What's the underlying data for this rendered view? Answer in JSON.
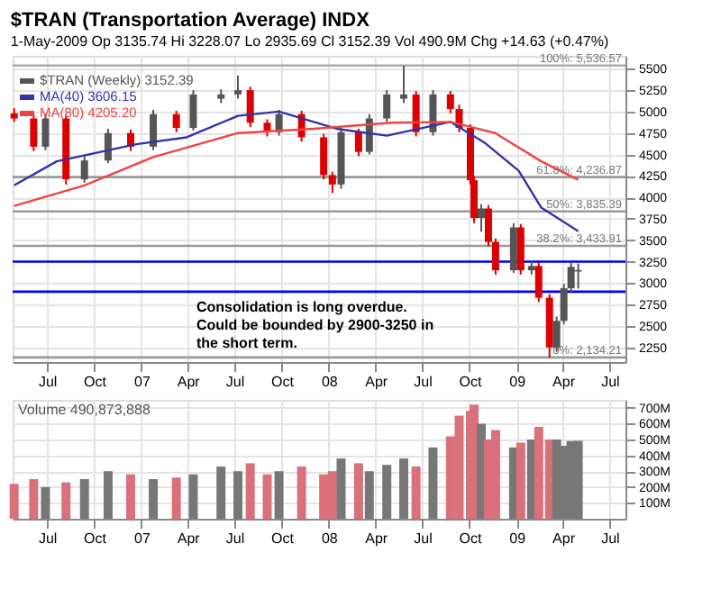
{
  "chart_data": [
    {
      "type": "candlestick",
      "title": "$TRAN (Transportation Average) INDX",
      "subtitle": "1-May-2009   Op 3135.74  Hi 3228.07  Lo 2935.69  Cl 3152.39  Vol 490.9M  Chg +14.63 (+0.47%)",
      "xlim": [
        "2006-04-25",
        "2009-08-01"
      ],
      "xticks": [
        {
          "value": "2006-07-01",
          "label": "Jul"
        },
        {
          "value": "2006-10-01",
          "label": "Oct"
        },
        {
          "value": "2007-01-01",
          "label": "07"
        },
        {
          "value": "2007-04-01",
          "label": "Apr"
        },
        {
          "value": "2007-07-01",
          "label": "Jul"
        },
        {
          "value": "2007-10-01",
          "label": "Oct"
        },
        {
          "value": "2008-01-01",
          "label": "08"
        },
        {
          "value": "2008-04-01",
          "label": "Apr"
        },
        {
          "value": "2008-07-01",
          "label": "Jul"
        },
        {
          "value": "2008-10-01",
          "label": "Oct"
        },
        {
          "value": "2009-01-01",
          "label": "09"
        },
        {
          "value": "2009-04-01",
          "label": "Apr"
        },
        {
          "value": "2009-07-01",
          "label": "Jul"
        }
      ],
      "ylim": [
        2080,
        5650
      ],
      "yticks": [
        2250,
        2500,
        2750,
        3000,
        3250,
        3500,
        3750,
        4000,
        4250,
        4500,
        4750,
        5000,
        5250,
        5500
      ],
      "grid": true,
      "legend": "top left",
      "series": [
        {
          "name": "$TRAN (Weekly) 3152.39",
          "type": "candlestick",
          "color": "#555555",
          "x": [
            "2006-04-28",
            "2006-06-05",
            "2006-06-28",
            "2006-08-07",
            "2006-09-12",
            "2006-10-28",
            "2006-12-11",
            "2007-01-24",
            "2007-03-10",
            "2007-04-12",
            "2007-06-05",
            "2007-07-08",
            "2007-08-01",
            "2007-09-03",
            "2007-09-26",
            "2007-11-09",
            "2007-12-22",
            "2008-01-08",
            "2008-01-25",
            "2008-02-28",
            "2008-03-20",
            "2008-04-23",
            "2008-05-26",
            "2008-06-19",
            "2008-07-22",
            "2008-08-25",
            "2008-09-11",
            "2008-10-03",
            "2008-10-10",
            "2008-10-24",
            "2008-11-07",
            "2008-11-21",
            "2008-12-26",
            "2009-01-09",
            "2009-01-30",
            "2009-02-13",
            "2009-03-06",
            "2009-03-20",
            "2009-04-03",
            "2009-04-17",
            "2009-05-01"
          ],
          "ohlc": [
            [
              4980,
              5040,
              4880,
              4920
            ],
            [
              4920,
              4970,
              4540,
              4590
            ],
            [
              4590,
              4970,
              4550,
              4920
            ],
            [
              4920,
              4960,
              4150,
              4210
            ],
            [
              4210,
              4480,
              4170,
              4430
            ],
            [
              4430,
              4800,
              4400,
              4750
            ],
            [
              4750,
              4790,
              4540,
              4590
            ],
            [
              4590,
              5020,
              4550,
              4970
            ],
            [
              4970,
              5010,
              4760,
              4810
            ],
            [
              4810,
              5250,
              4780,
              5200
            ],
            [
              5150,
              5260,
              5100,
              5200
            ],
            [
              5200,
              5420,
              5150,
              5250
            ],
            [
              5250,
              5290,
              4820,
              4870
            ],
            [
              4870,
              4910,
              4710,
              4760
            ],
            [
              4760,
              5020,
              4720,
              4970
            ],
            [
              4970,
              5010,
              4650,
              4700
            ],
            [
              4700,
              4740,
              4210,
              4260
            ],
            [
              4260,
              4300,
              4050,
              4150
            ],
            [
              4150,
              4810,
              4100,
              4760
            ],
            [
              4760,
              4800,
              4480,
              4530
            ],
            [
              4530,
              4970,
              4500,
              4920
            ],
            [
              4920,
              5250,
              4880,
              5200
            ],
            [
              5150,
              5536.57,
              5100,
              5200
            ],
            [
              5200,
              5240,
              4710,
              4760
            ],
            [
              4760,
              5250,
              4720,
              5200
            ],
            [
              5200,
              5240,
              4980,
              5030
            ],
            [
              5030,
              5080,
              4760,
              4810
            ],
            [
              4810,
              4850,
              4150,
              4200
            ],
            [
              4200,
              4250,
              3700,
              3760
            ],
            [
              3760,
              3920,
              3600,
              3870
            ],
            [
              3870,
              3910,
              3430,
              3480
            ],
            [
              3480,
              3520,
              3100,
              3150
            ],
            [
              3150,
              3700,
              3120,
              3650
            ],
            [
              3650,
              3690,
              3100,
              3150
            ],
            [
              3150,
              3260,
              3100,
              3200
            ],
            [
              3200,
              3240,
              2780,
              2830
            ],
            [
              2830,
              2870,
              2134.21,
              2250
            ],
            [
              2250,
              2610,
              2200,
              2560
            ],
            [
              2560,
              2990,
              2520,
              2940
            ],
            [
              2940,
              3240,
              2900,
              3190
            ],
            [
              3135.74,
              3228.07,
              2935.69,
              3152.39
            ]
          ],
          "colors": [
            "#dd0000",
            "#dd0000",
            "#555555",
            "#dd0000",
            "#555555",
            "#555555",
            "#dd0000",
            "#555555",
            "#dd0000",
            "#555555",
            "#555555",
            "#555555",
            "#dd0000",
            "#dd0000",
            "#555555",
            "#dd0000",
            "#dd0000",
            "#dd0000",
            "#555555",
            "#dd0000",
            "#555555",
            "#555555",
            "#555555",
            "#dd0000",
            "#555555",
            "#dd0000",
            "#dd0000",
            "#dd0000",
            "#dd0000",
            "#555555",
            "#dd0000",
            "#dd0000",
            "#555555",
            "#dd0000",
            "#555555",
            "#dd0000",
            "#dd0000",
            "#555555",
            "#555555",
            "#555555",
            "#555555"
          ]
        },
        {
          "name": "MA(40) 3606.15",
          "type": "line",
          "color": "#3333aa",
          "x": [
            "2006-04-28",
            "2006-07-20",
            "2006-12-22",
            "2007-03-30",
            "2007-07-08",
            "2007-09-26",
            "2008-01-16",
            "2008-04-23",
            "2008-08-25",
            "2008-10-30",
            "2009-01-05",
            "2009-02-18",
            "2009-05-01"
          ],
          "values": [
            4140,
            4420,
            4620,
            4700,
            4950,
            5000,
            4800,
            4720,
            4880,
            4640,
            4310,
            3880,
            3606.15
          ]
        },
        {
          "name": "MA(80) 4205.20",
          "type": "line",
          "color": "#ee4444",
          "x": [
            "2006-04-28",
            "2006-09-12",
            "2007-01-24",
            "2007-07-08",
            "2007-12-03",
            "2008-05-03",
            "2008-08-25",
            "2008-11-20",
            "2009-02-18",
            "2009-05-01"
          ],
          "values": [
            3900,
            4140,
            4470,
            4750,
            4800,
            4870,
            4880,
            4750,
            4420,
            4205.2
          ]
        }
      ],
      "ref_lines": [
        {
          "axis": "y",
          "value": 5536.57,
          "label": "100%: 5,536.57",
          "color": "#aaaaaa"
        },
        {
          "axis": "y",
          "value": 4236.87,
          "label": "61.8%: 4,236.87",
          "color": "#999999"
        },
        {
          "axis": "y",
          "value": 3835.39,
          "label": "50%: 3,835.39",
          "color": "#999999"
        },
        {
          "axis": "y",
          "value": 3433.91,
          "label": "38.2%: 3,433.91",
          "color": "#999999"
        },
        {
          "axis": "y",
          "value": 2134.21,
          "label": "0%: 2,134.21",
          "color": "#999999"
        },
        {
          "axis": "y",
          "value": 3250,
          "color": "#0000ff"
        },
        {
          "axis": "y",
          "value": 2900,
          "color": "#0000ff"
        }
      ],
      "annotations": [
        "Consolidation is long overdue. Could be bounded by 2900-3250 in the short term."
      ]
    },
    {
      "type": "bar",
      "title": "Volume 490,873,888",
      "xlim": [
        "2006-04-25",
        "2009-08-01"
      ],
      "xticks": [
        {
          "value": "2006-07-01",
          "label": "Jul"
        },
        {
          "value": "2006-10-01",
          "label": "Oct"
        },
        {
          "value": "2007-01-01",
          "label": "07"
        },
        {
          "value": "2007-04-01",
          "label": "Apr"
        },
        {
          "value": "2007-07-01",
          "label": "Jul"
        },
        {
          "value": "2007-10-01",
          "label": "Oct"
        },
        {
          "value": "2008-01-01",
          "label": "08"
        },
        {
          "value": "2008-04-01",
          "label": "Apr"
        },
        {
          "value": "2008-07-01",
          "label": "Jul"
        },
        {
          "value": "2008-10-01",
          "label": "Oct"
        },
        {
          "value": "2009-01-01",
          "label": "09"
        },
        {
          "value": "2009-04-01",
          "label": "Apr"
        },
        {
          "value": "2009-07-01",
          "label": "Jul"
        }
      ],
      "x": [
        "2006-04-28",
        "2006-06-05",
        "2006-06-28",
        "2006-08-07",
        "2006-09-12",
        "2006-10-28",
        "2006-12-11",
        "2007-01-24",
        "2007-03-10",
        "2007-04-12",
        "2007-06-05",
        "2007-07-08",
        "2007-08-01",
        "2007-09-03",
        "2007-09-26",
        "2007-11-09",
        "2007-12-22",
        "2008-01-08",
        "2008-01-25",
        "2008-02-28",
        "2008-03-20",
        "2008-04-23",
        "2008-05-26",
        "2008-06-19",
        "2008-07-22",
        "2008-08-25",
        "2008-09-11",
        "2008-10-03",
        "2008-10-10",
        "2008-10-24",
        "2008-11-07",
        "2008-11-21",
        "2008-12-26",
        "2009-01-09",
        "2009-01-30",
        "2009-02-13",
        "2009-03-06",
        "2009-03-20",
        "2009-04-03",
        "2009-04-17",
        "2009-05-01"
      ],
      "values": [
        220,
        250,
        200,
        230,
        250,
        300,
        280,
        250,
        260,
        280,
        330,
        300,
        350,
        280,
        300,
        330,
        280,
        300,
        380,
        350,
        300,
        340,
        380,
        330,
        450,
        520,
        650,
        680,
        720,
        600,
        500,
        560,
        450,
        480,
        500,
        580,
        500,
        500,
        460,
        490,
        490.87
      ],
      "colors": [
        "#d9707a",
        "#d9707a",
        "#777777",
        "#d9707a",
        "#777777",
        "#777777",
        "#d9707a",
        "#777777",
        "#d9707a",
        "#777777",
        "#777777",
        "#777777",
        "#d9707a",
        "#d9707a",
        "#777777",
        "#d9707a",
        "#d9707a",
        "#d9707a",
        "#777777",
        "#d9707a",
        "#777777",
        "#777777",
        "#777777",
        "#d9707a",
        "#777777",
        "#d9707a",
        "#d9707a",
        "#d9707a",
        "#d9707a",
        "#777777",
        "#d9707a",
        "#d9707a",
        "#777777",
        "#d9707a",
        "#777777",
        "#d9707a",
        "#d9707a",
        "#777777",
        "#777777",
        "#777777",
        "#777777"
      ],
      "ylim": [
        0,
        750
      ],
      "yticks": [
        {
          "value": 100,
          "label": "100M"
        },
        {
          "value": 200,
          "label": "200M"
        },
        {
          "value": 300,
          "label": "300M"
        },
        {
          "value": 400,
          "label": "400M"
        },
        {
          "value": 500,
          "label": "500M"
        },
        {
          "value": 600,
          "label": "600M"
        },
        {
          "value": 700,
          "label": "700M"
        }
      ],
      "grid": true
    }
  ]
}
